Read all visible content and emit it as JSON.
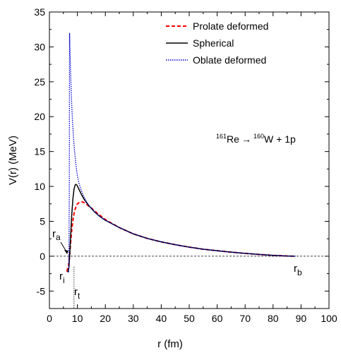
{
  "chart_data": {
    "type": "line",
    "xlabel": "r (fm)",
    "ylabel": "V(r) (MeV)",
    "xlim": [
      0,
      100
    ],
    "ylim": [
      -7.5,
      35
    ],
    "xticks": [
      "0",
      "10",
      "20",
      "30",
      "40",
      "50",
      "60",
      "70",
      "80",
      "90",
      "100"
    ],
    "yticks": [
      "-5",
      "0",
      "5",
      "10",
      "15",
      "20",
      "25",
      "30",
      "35"
    ],
    "grid": false,
    "legend_position": "top-right",
    "reaction": {
      "parent_mass": "161",
      "parent": "Re",
      "arrow": "→",
      "daughter_mass": "160",
      "daughter": "W",
      "emitted": "+ 1p"
    },
    "annotations": {
      "ra": {
        "letter": "r",
        "sub": "a"
      },
      "ri": {
        "letter": "r",
        "sub": "i"
      },
      "rt": {
        "letter": "r",
        "sub": "t"
      },
      "rb": {
        "letter": "r",
        "sub": "b"
      }
    },
    "series": [
      {
        "name": "Prolate deformed",
        "color": "#ff0000",
        "style": "dashed",
        "x": [
          6.2,
          6.8,
          7.2,
          7.6,
          8.0,
          8.5,
          9.0,
          9.5,
          10.0,
          10.5,
          11.0,
          11.5,
          12.0,
          13,
          14,
          15,
          17,
          20,
          25,
          30,
          35,
          40,
          45,
          50,
          55,
          60,
          65,
          70,
          75,
          80,
          85,
          88
        ],
        "y": [
          -2.2,
          -1.4,
          0.0,
          2.0,
          3.8,
          5.4,
          6.5,
          7.1,
          7.5,
          7.65,
          7.75,
          7.78,
          7.75,
          7.55,
          7.2,
          6.9,
          6.2,
          5.25,
          4.1,
          3.2,
          2.55,
          2.05,
          1.65,
          1.3,
          1.0,
          0.78,
          0.58,
          0.4,
          0.25,
          0.12,
          0.03,
          0.0
        ]
      },
      {
        "name": "Spherical",
        "color": "#000000",
        "style": "solid",
        "x": [
          6.6,
          7.0,
          7.3,
          7.6,
          8.0,
          8.4,
          8.8,
          9.2,
          9.5,
          9.8,
          10.2,
          10.8,
          11.5,
          12.5,
          14,
          16,
          18,
          20,
          25,
          30,
          35,
          40,
          45,
          50,
          55,
          60,
          65,
          70,
          75,
          80,
          85,
          88
        ],
        "y": [
          -2.3,
          -1.5,
          0.5,
          3.0,
          6.0,
          8.2,
          9.6,
          10.2,
          10.3,
          10.2,
          9.9,
          9.4,
          8.8,
          8.1,
          7.3,
          6.4,
          5.7,
          5.15,
          4.1,
          3.2,
          2.55,
          2.05,
          1.65,
          1.3,
          1.0,
          0.78,
          0.58,
          0.4,
          0.25,
          0.12,
          0.03,
          0.0
        ]
      },
      {
        "name": "Oblate deformed",
        "color": "#0000cc",
        "style": "dotted",
        "x": [
          6.9,
          7.0,
          7.1,
          7.2,
          7.4,
          7.6,
          7.8,
          8.0,
          8.3,
          8.6,
          9.0,
          9.5,
          10.0,
          10.5,
          11.0,
          12.0,
          13.0,
          14.0,
          16.0,
          18.0,
          20.0,
          25,
          30,
          35,
          40,
          45,
          50,
          55,
          60,
          65,
          70,
          75,
          80,
          85,
          88
        ],
        "y": [
          -2.3,
          1.0,
          8.0,
          32.0,
          29.0,
          26.0,
          23.5,
          21.5,
          19.0,
          17.0,
          15.0,
          13.0,
          11.5,
          10.6,
          9.9,
          8.8,
          8.0,
          7.35,
          6.4,
          5.7,
          5.15,
          4.1,
          3.2,
          2.55,
          2.05,
          1.65,
          1.3,
          1.0,
          0.78,
          0.58,
          0.4,
          0.25,
          0.12,
          0.03,
          0.0
        ]
      }
    ]
  }
}
